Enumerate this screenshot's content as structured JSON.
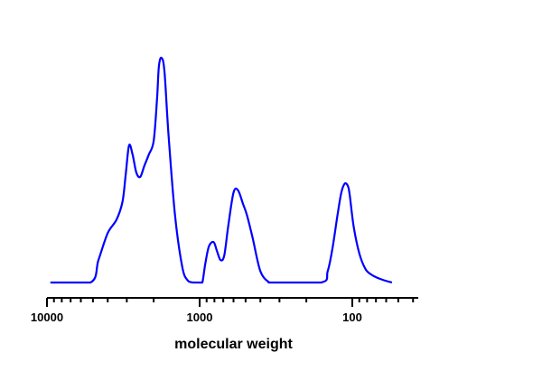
{
  "chart_data": {
    "type": "line",
    "title": "",
    "xlabel": "molecular weight",
    "ylabel": "",
    "x_scale": "log",
    "x_reversed": true,
    "xlim": [
      10000,
      40
    ],
    "ylim": [
      0,
      1.0
    ],
    "grid": false,
    "legend": "none",
    "x_ticks": [
      10000,
      1000,
      100
    ],
    "x_tick_labels": [
      "10000",
      "1000",
      "100"
    ],
    "series": [
      {
        "color": "#0000ff",
        "x": [
          9500,
          5200,
          4600,
          4000,
          3500,
          3200,
          3050,
          2900,
          2750,
          2600,
          2450,
          2300,
          2150,
          2000,
          1900,
          1850,
          1780,
          1700,
          1600,
          1450,
          1300,
          1200,
          1100,
          1000,
          960,
          920,
          870,
          810,
          770,
          730,
          690,
          650,
          600,
          560,
          520,
          490,
          450,
          400,
          350,
          330,
          160,
          145,
          135,
          125,
          118,
          112,
          107,
          104,
          98,
          90,
          82,
          75,
          68,
          62,
          55
        ],
        "y": [
          0.0,
          0.0,
          0.1,
          0.22,
          0.28,
          0.36,
          0.48,
          0.61,
          0.57,
          0.49,
          0.47,
          0.52,
          0.57,
          0.63,
          0.82,
          0.96,
          1.0,
          0.94,
          0.66,
          0.3,
          0.07,
          0.01,
          0.0,
          0.0,
          0.0,
          0.08,
          0.16,
          0.18,
          0.14,
          0.1,
          0.12,
          0.25,
          0.4,
          0.41,
          0.35,
          0.3,
          0.2,
          0.05,
          0.0,
          0.0,
          0.0,
          0.05,
          0.15,
          0.3,
          0.4,
          0.44,
          0.43,
          0.39,
          0.25,
          0.13,
          0.06,
          0.035,
          0.02,
          0.01,
          0.0
        ]
      }
    ]
  }
}
